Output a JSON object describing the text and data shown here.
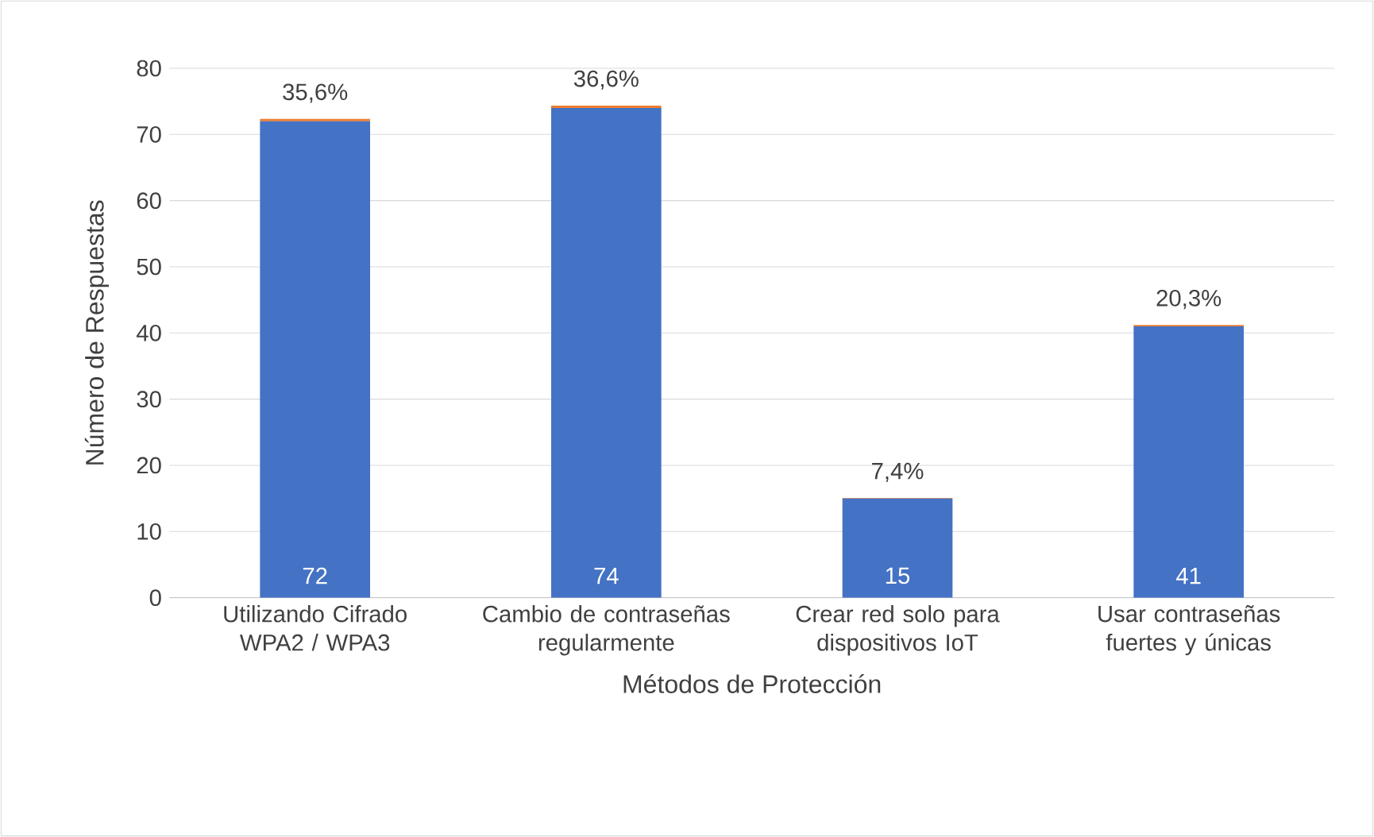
{
  "chart_data": {
    "type": "bar",
    "stacked": true,
    "categories": [
      "Utilizando Cifrado WPA2 / WPA3",
      "Cambio de contraseñas regularmente",
      "Crear red solo para dispositivos IoT",
      "Usar contraseñas fuertes y únicas"
    ],
    "series": [
      {
        "color": "#4472c4",
        "values": [
          72,
          74,
          15,
          41
        ],
        "value_labels": [
          "72",
          "74",
          "15",
          "41"
        ]
      },
      {
        "color": "#ed7d31",
        "values": [
          0.356,
          0.366,
          0.074,
          0.203
        ],
        "value_labels": [
          "35,6%",
          "36,6%",
          "7,4%",
          "20,3%"
        ]
      }
    ],
    "xlabel": "Métodos de Protección",
    "ylabel": "Número de Respuestas",
    "ylim": [
      0,
      80
    ],
    "yticks": [
      0,
      10,
      20,
      30,
      40,
      50,
      60,
      70,
      80
    ],
    "grid": "y"
  }
}
